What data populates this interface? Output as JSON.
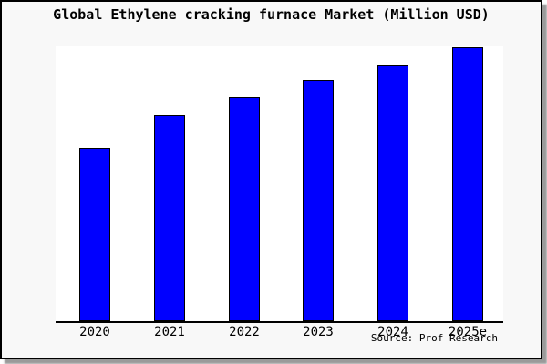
{
  "chart": {
    "title": "Global Ethylene cracking furnace Market (Million USD)",
    "source": "Source: Prof Research"
  },
  "chart_data": {
    "type": "bar",
    "title": "Global Ethylene cracking furnace Market (Million USD)",
    "categories": [
      "2020",
      "2021",
      "2022",
      "2023",
      "2024",
      "2025e"
    ],
    "values": [
      63.1,
      75.4,
      81.7,
      88.0,
      93.7,
      100.0
    ],
    "value_note": "y-axis has no tick labels; values are bar heights normalized so that 2025e = 100",
    "xlabel": "",
    "ylabel": "",
    "ylim": [
      0,
      100
    ],
    "grid": false,
    "legend": false,
    "source": "Source: Prof Research"
  },
  "colors": {
    "bar_fill": "#0000ff",
    "bar_border": "#000000",
    "frame_background": "#f8f8f8",
    "plot_background": "#ffffff",
    "axis": "#000000",
    "text": "#000000",
    "shadow": "#9a9a9a"
  }
}
